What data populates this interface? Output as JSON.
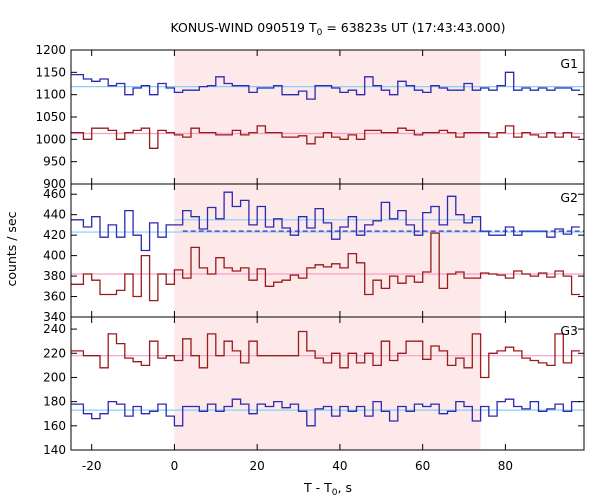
{
  "chart_data": {
    "type": "line",
    "title": "KONUS-WIND 090519 T",
    "title_sub": "0",
    "title_rest": " = 63823s UT (17:43:43.000)",
    "xlabel": "T - T",
    "xlabel_sub": "0",
    "xlabel_rest": ", s",
    "ylabel": "counts / sec",
    "xlim": [
      -25,
      99
    ],
    "xticks": [
      -20,
      0,
      20,
      40,
      60,
      80
    ],
    "highlight_interval": [
      0,
      74
    ],
    "highlight_color": "#fde8ea",
    "bin_x": [
      -25,
      -22,
      -20,
      -18,
      -16,
      -14,
      -12,
      -10,
      -8,
      -6,
      -4,
      -2,
      0,
      2,
      4,
      6,
      8,
      10,
      12,
      14,
      16,
      18,
      20,
      22,
      24,
      26,
      28,
      30,
      32,
      34,
      36,
      38,
      40,
      42,
      44,
      46,
      48,
      50,
      52,
      54,
      56,
      58,
      60,
      62,
      64,
      66,
      68,
      70,
      72,
      74,
      76,
      78,
      80,
      82,
      84,
      86,
      88,
      90,
      92,
      94,
      96,
      98
    ],
    "panels": [
      {
        "name": "G1",
        "ylim": [
          900,
          1200
        ],
        "yticks": [
          900,
          950,
          1000,
          1050,
          1100,
          1150,
          1200
        ],
        "series": [
          {
            "color": "#2b2bb0",
            "values": [
              1145,
              1135,
              1130,
              1135,
              1120,
              1125,
              1100,
              1115,
              1120,
              1100,
              1125,
              1115,
              1105,
              1110,
              1110,
              1118,
              1120,
              1140,
              1125,
              1120,
              1120,
              1105,
              1115,
              1115,
              1120,
              1100,
              1100,
              1108,
              1090,
              1120,
              1120,
              1115,
              1105,
              1110,
              1100,
              1140,
              1120,
              1110,
              1100,
              1130,
              1120,
              1110,
              1105,
              1120,
              1115,
              1110,
              1110,
              1125,
              1110,
              1115,
              1110,
              1120,
              1150,
              1110,
              1115,
              1110,
              1115,
              1110,
              1115,
              1115,
              1110
            ]
          },
          {
            "color": "#9b1b1b",
            "values": [
              1015,
              1000,
              1025,
              1025,
              1020,
              1000,
              1015,
              1020,
              1025,
              980,
              1020,
              1015,
              1010,
              1005,
              1025,
              1015,
              1015,
              1010,
              1010,
              1020,
              1010,
              1015,
              1030,
              1015,
              1015,
              1005,
              1005,
              1008,
              990,
              1005,
              1015,
              1005,
              1000,
              1010,
              1000,
              1020,
              1020,
              1015,
              1015,
              1025,
              1020,
              1010,
              1015,
              1015,
              1020,
              1015,
              1005,
              1015,
              1015,
              1015,
              1005,
              1015,
              1030,
              1005,
              1015,
              1010,
              1005,
              1015,
              1005,
              1015,
              1005
            ]
          }
        ],
        "fits": [
          {
            "color": "#87cefa",
            "y": 1118,
            "dashed": false
          },
          {
            "color": "#f4a0c8",
            "y": 1013,
            "dashed": false
          }
        ]
      },
      {
        "name": "G2",
        "ylim": [
          340,
          470
        ],
        "yticks": [
          340,
          360,
          380,
          400,
          420,
          440,
          460
        ],
        "series": [
          {
            "color": "#2b2bb0",
            "values": [
              435,
              428,
              438,
              418,
              430,
              418,
              444,
              420,
              405,
              432,
              418,
              430,
              430,
              444,
              438,
              426,
              447,
              436,
              462,
              448,
              454,
              430,
              448,
              428,
              436,
              427,
              420,
              438,
              427,
              446,
              432,
              416,
              428,
              438,
              420,
              430,
              434,
              452,
              436,
              444,
              430,
              420,
              442,
              448,
              430,
              458,
              440,
              432,
              438,
              424,
              420,
              420,
              428,
              420,
              424,
              424,
              424,
              418,
              426,
              421,
              428
            ]
          },
          {
            "color": "#9b1b1b",
            "values": [
              372,
              382,
              376,
              362,
              362,
              366,
              382,
              360,
              400,
              356,
              382,
              372,
              386,
              378,
              408,
              388,
              382,
              398,
              388,
              385,
              388,
              376,
              387,
              370,
              374,
              376,
              381,
              378,
              388,
              391,
              389,
              392,
              388,
              402,
              393,
              362,
              376,
              368,
              380,
              373,
              380,
              374,
              384,
              422,
              368,
              382,
              384,
              378,
              378,
              383,
              382,
              381,
              378,
              385,
              382,
              380,
              383,
              379,
              385,
              380,
              362
            ]
          }
        ],
        "fits": [
          {
            "color": "#87cefa",
            "y": 423,
            "dashed": false
          },
          {
            "color": "#f4a0c8",
            "y": 382,
            "dashed": false
          }
        ],
        "extra_lines": [
          {
            "color": "#2b2bb0",
            "y": 424,
            "x_from": 2,
            "x_to": 99,
            "dashed": true
          },
          {
            "color": "#87cefa",
            "y": 435,
            "x_from": 0,
            "x_to": 74,
            "dashed": false
          }
        ]
      },
      {
        "name": "G3",
        "ylim": [
          140,
          250
        ],
        "yticks": [
          140,
          160,
          180,
          200,
          220,
          240
        ],
        "series": [
          {
            "color": "#9b1b1b",
            "values": [
              222,
              218,
              218,
              208,
              236,
              228,
              216,
              213,
              210,
              230,
              216,
              218,
              214,
              232,
              218,
              208,
              236,
              218,
              230,
              222,
              212,
              230,
              218,
              218,
              218,
              218,
              218,
              238,
              222,
              216,
              212,
              220,
              208,
              220,
              212,
              220,
              210,
              230,
              214,
              220,
              230,
              230,
              215,
              226,
              222,
              210,
              216,
              208,
              236,
              200,
              220,
              222,
              225,
              222,
              216,
              214,
              212,
              210,
              236,
              212,
              222
            ]
          },
          {
            "color": "#2b2bb0",
            "values": [
              178,
              170,
              166,
              170,
              180,
              178,
              168,
              176,
              170,
              172,
              178,
              168,
              160,
              176,
              176,
              172,
              178,
              172,
              176,
              182,
              178,
              170,
              178,
              176,
              180,
              175,
              178,
              172,
              160,
              174,
              176,
              168,
              176,
              172,
              176,
              168,
              180,
              172,
              164,
              176,
              172,
              178,
              176,
              178,
              170,
              172,
              180,
              176,
              164,
              176,
              168,
              180,
              182,
              176,
              174,
              180,
              172,
              174,
              178,
              172,
              180
            ]
          }
        ],
        "fits": [
          {
            "color": "#87cefa",
            "y": 173,
            "dashed": false
          },
          {
            "color": "#f4a0c8",
            "y": 218,
            "dashed": false
          }
        ]
      }
    ]
  }
}
